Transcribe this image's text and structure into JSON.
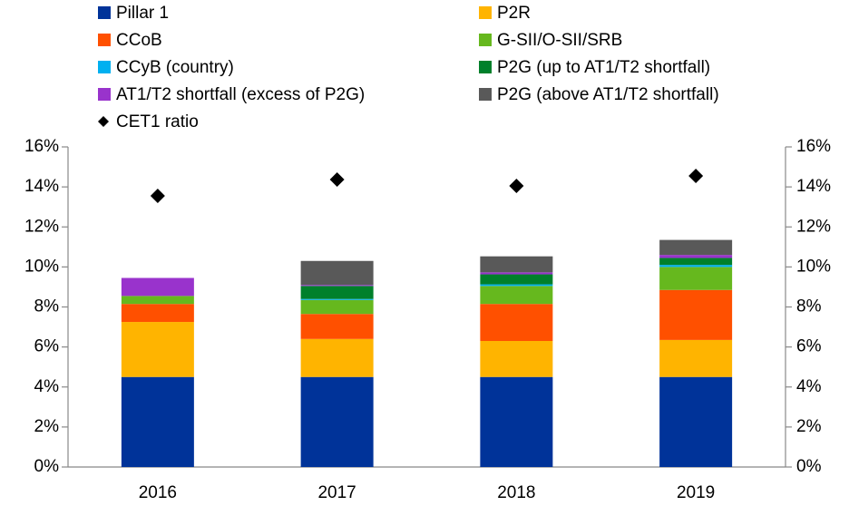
{
  "chart_data": {
    "type": "bar",
    "stacked": true,
    "categories": [
      "2016",
      "2017",
      "2018",
      "2019"
    ],
    "series": [
      {
        "name": "Pillar 1",
        "color": "#003399",
        "values": [
          4.5,
          4.5,
          4.5,
          4.5
        ]
      },
      {
        "name": "P2R",
        "color": "#ffb400",
        "values": [
          2.75,
          1.9,
          1.8,
          1.85
        ]
      },
      {
        "name": "CCoB",
        "color": "#ff5000",
        "values": [
          0.9,
          1.25,
          1.85,
          2.5
        ]
      },
      {
        "name": "G-SII/O-SII/SRB",
        "color": "#66b81e",
        "values": [
          0.4,
          0.7,
          0.9,
          1.15
        ]
      },
      {
        "name": "CCyB (country)",
        "color": "#00b0f0",
        "values": [
          0,
          0.05,
          0.08,
          0.1
        ]
      },
      {
        "name": "P2G (up to AT1/T2 shortfall)",
        "color": "#00802b",
        "values": [
          0,
          0.65,
          0.5,
          0.35
        ]
      },
      {
        "name": "AT1/T2 shortfall (excess of P2G)",
        "color": "#9933cc",
        "values": [
          0.9,
          0.05,
          0.1,
          0.15
        ]
      },
      {
        "name": "P2G (above AT1/T2 shortfall)",
        "color": "#595959",
        "values": [
          0,
          1.2,
          0.8,
          0.75
        ]
      },
      {
        "name": "CET1 ratio",
        "type": "scatter",
        "color": "#000000",
        "values": [
          13.55,
          14.37,
          14.05,
          14.55
        ]
      }
    ],
    "ylim": [
      0,
      16
    ],
    "yticks": [
      {
        "value": 0,
        "label": "0%"
      },
      {
        "value": 2,
        "label": "2%"
      },
      {
        "value": 4,
        "label": "4%"
      },
      {
        "value": 6,
        "label": "6%"
      },
      {
        "value": 8,
        "label": "8%"
      },
      {
        "value": 10,
        "label": "10%"
      },
      {
        "value": 12,
        "label": "12%"
      },
      {
        "value": 14,
        "label": "14%"
      },
      {
        "value": 16,
        "label": "16%"
      }
    ],
    "y2lim": [
      0,
      16
    ],
    "y2ticks": [
      {
        "value": 0,
        "label": "0%"
      },
      {
        "value": 2,
        "label": "2%"
      },
      {
        "value": 4,
        "label": "4%"
      },
      {
        "value": 6,
        "label": "6%"
      },
      {
        "value": 8,
        "label": "8%"
      },
      {
        "value": 10,
        "label": "10%"
      },
      {
        "value": 12,
        "label": "12%"
      },
      {
        "value": 14,
        "label": "14%"
      },
      {
        "value": 16,
        "label": "16%"
      }
    ],
    "grid": false
  }
}
